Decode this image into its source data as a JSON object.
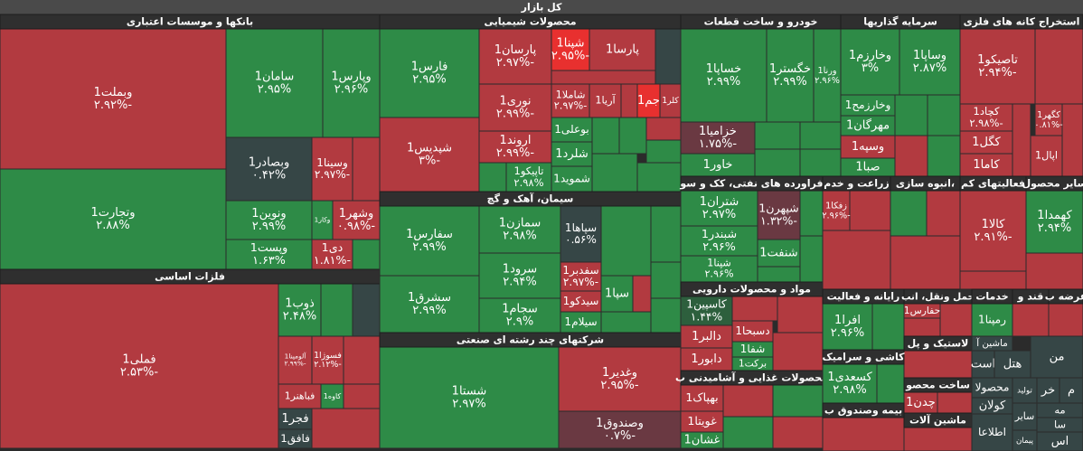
{
  "title": "کل بازار",
  "sectors": [
    {
      "name": "بانکها و موسسات اعتباری",
      "tiles": [
        {
          "name": "وبملت1",
          "change": "-۲.۹۲%",
          "color": "#b23a40"
        },
        {
          "name": "وتجارت1",
          "change": "۲.۸۸%",
          "color": "#2e8b47"
        },
        {
          "name": "سامان1",
          "change": "۲.۹۵%",
          "color": "#2e8b47"
        },
        {
          "name": "وپارس1",
          "change": "۲.۹۶%",
          "color": "#2e8b47"
        },
        {
          "name": "وبصادر1",
          "change": "۰.۴۲%",
          "color": "#364646"
        },
        {
          "name": "وسینا1",
          "change": "-۲.۹۷%",
          "color": "#b23a40"
        },
        {
          "name": "ونوین1",
          "change": "۲.۹۹%",
          "color": "#2e8b47"
        },
        {
          "name": "وکار1",
          "color": "#2e8b47"
        },
        {
          "name": "وشهر1",
          "change": "-۰.۹۸%",
          "color": "#b23a40"
        },
        {
          "name": "وپست1",
          "change": "۱.۶۳%",
          "color": "#2e8b47"
        },
        {
          "name": "دی1",
          "change": "-۱.۸۱%",
          "color": "#b23a40"
        }
      ]
    },
    {
      "name": "فلزات اساسی",
      "tiles": [
        {
          "name": "فملی1",
          "change": "-۲.۵۳%",
          "color": "#b23a40"
        },
        {
          "name": "ذوب1",
          "change": "۲.۴۸%",
          "color": "#2e8b47"
        },
        {
          "name": "آلومینا1",
          "change": "-۲.۹۹%",
          "color": "#b23a40"
        },
        {
          "name": "فسوژا1",
          "change": "-۲.۱۲%",
          "color": "#b23a40"
        },
        {
          "name": "فباهنر1",
          "color": "#b23a40"
        },
        {
          "name": "کاوه1",
          "color": "#2e8b47"
        },
        {
          "name": "فجر1",
          "color": "#364646"
        },
        {
          "name": "فافق1",
          "color": "#364646"
        }
      ]
    },
    {
      "name": "محصولات شیمیایی",
      "tiles": [
        {
          "name": "فارس1",
          "change": "۲.۹۵%",
          "color": "#2e8b47"
        },
        {
          "name": "شپدیس1",
          "change": "-۳%",
          "color": "#b23a40"
        },
        {
          "name": "پارسان1",
          "change": "-۲.۹۷%",
          "color": "#b23a40"
        },
        {
          "name": "نوری1",
          "change": "-۲.۹۹%",
          "color": "#b23a40"
        },
        {
          "name": "اروند1",
          "change": "-۲.۹۹%",
          "color": "#b23a40"
        },
        {
          "name": "تاپیکو1",
          "change": "۲.۹۸%",
          "color": "#2e8b47"
        },
        {
          "name": "شپنا1",
          "change": "-۲.۹۵%",
          "color": "#e8302f"
        },
        {
          "name": "پارسا1",
          "color": "#b23a40"
        },
        {
          "name": "شاملا1",
          "change": "-۲.۹۷%",
          "color": "#b23a40"
        },
        {
          "name": "آریا1",
          "color": "#b23a40"
        },
        {
          "name": "جم1",
          "color": "#e8302f"
        },
        {
          "name": "کلر1",
          "color": "#b23a40"
        },
        {
          "name": "بوعلی1",
          "color": "#2e8b47"
        },
        {
          "name": "شلرد1",
          "color": "#2e8b47"
        },
        {
          "name": "شموید1",
          "color": "#2e8b47"
        }
      ]
    },
    {
      "name": "سیمان، آهک و گچ",
      "tiles": [
        {
          "name": "سفارس1",
          "change": "۲.۹۹%",
          "color": "#2e8b47"
        },
        {
          "name": "سشرق1",
          "change": "۲.۹۹%",
          "color": "#2e8b47"
        },
        {
          "name": "سمازن1",
          "change": "۲.۹۸%",
          "color": "#2e8b47"
        },
        {
          "name": "سرود1",
          "change": "۲.۹۴%",
          "color": "#2e8b47"
        },
        {
          "name": "سجام1",
          "change": "۲.۹%",
          "color": "#2e8b47"
        },
        {
          "name": "سپاها1",
          "change": "۰.۵۶%",
          "color": "#364646"
        },
        {
          "name": "سفدبر1",
          "change": "-۲.۹۷%",
          "color": "#b23a40"
        },
        {
          "name": "سیدکو1",
          "color": "#b23a40"
        },
        {
          "name": "سیلام1",
          "color": "#2e8b47"
        },
        {
          "name": "سپا1",
          "color": "#2e8b47"
        }
      ]
    },
    {
      "name": "شرکتهای چند رشته ای صنعتی",
      "tiles": [
        {
          "name": "شستا1",
          "change": "۲.۹۷%",
          "color": "#2e8b47"
        },
        {
          "name": "وغدیر1",
          "change": "-۲.۹۵%",
          "color": "#b23a40"
        },
        {
          "name": "وصندوق1",
          "change": "-۰.۷%",
          "color": "#6a3942"
        }
      ]
    },
    {
      "name": "خودرو و ساخت قطعات",
      "tiles": [
        {
          "name": "خساپا1",
          "change": "۲.۹۹%",
          "color": "#2e8b47"
        },
        {
          "name": "خگستر1",
          "change": "۲.۹۹%",
          "color": "#2e8b47"
        },
        {
          "name": "ورنا1",
          "change": "۲.۹۶%",
          "color": "#2e8b47"
        },
        {
          "name": "خزامیا1",
          "change": "-۱.۷۵%",
          "color": "#6a3942"
        },
        {
          "name": "خاور1",
          "color": "#2e8b47"
        }
      ]
    },
    {
      "name": "فراورده های نفتی، کک و سو",
      "tiles": [
        {
          "name": "شتران1",
          "change": "۲.۹۷%",
          "color": "#2e8b47"
        },
        {
          "name": "شبندر1",
          "change": "۲.۹۶%",
          "color": "#2e8b47"
        },
        {
          "name": "شپنا1",
          "change": "۲.۹۶%",
          "color": "#2e8b47"
        },
        {
          "name": "شپهرن1",
          "change": "-۱.۳۲%",
          "color": "#6a3942"
        },
        {
          "name": "شنفت1",
          "color": "#2e8b47"
        }
      ]
    },
    {
      "name": "مواد و محصولات دارویی",
      "tiles": [
        {
          "name": "کاسپین1",
          "change": "۱.۴۴%",
          "color": "#2d5f3d"
        },
        {
          "name": "دالبر1",
          "color": "#b23a40"
        },
        {
          "name": "دابور1",
          "color": "#b23a40"
        },
        {
          "name": "دسبحا1",
          "color": "#b23a40"
        },
        {
          "name": "شفا1",
          "color": "#2e8b47"
        },
        {
          "name": "برکت1",
          "color": "#2e8b47"
        }
      ]
    },
    {
      "name": "محصولات غذایی و آشامیدنی ب",
      "tiles": [
        {
          "name": "بهپاک1",
          "color": "#b23a40"
        },
        {
          "name": "غویتا1",
          "color": "#b23a40"
        },
        {
          "name": "غشان1",
          "color": "#2e8b47"
        }
      ]
    },
    {
      "name": "سرمایه گذاریها",
      "tiles": [
        {
          "name": "وخارزم1",
          "change": "۳%",
          "color": "#2e8b47"
        },
        {
          "name": "وساپا1",
          "change": "۲.۸۷%",
          "color": "#2e8b47"
        },
        {
          "name": "وخارزمح1",
          "color": "#2e8b47"
        },
        {
          "name": "مهرگان1",
          "color": "#2e8b47"
        },
        {
          "name": "وسپه1",
          "color": "#b23a40"
        },
        {
          "name": "صبا1",
          "color": "#2e8b47"
        }
      ]
    },
    {
      "name": "زراعت و خدم",
      "tiles": [
        {
          "name": "زفکا1",
          "change": "-۲.۹۶%",
          "color": "#b23a40"
        }
      ]
    },
    {
      "name": "،انبوه سازی",
      "tiles": []
    },
    {
      "name": "رایانه و فعالیت",
      "tiles": [
        {
          "name": "افرا1",
          "change": "۲.۹۶%",
          "color": "#2e8b47"
        }
      ]
    },
    {
      "name": "حمل ونقل، انب",
      "tiles": [
        {
          "name": "حفارس1",
          "color": "#b23a40"
        }
      ]
    },
    {
      "name": "لاستیک و پل",
      "tiles": []
    },
    {
      "name": "کاشی و سرامیک",
      "tiles": [
        {
          "name": "کسعدی1",
          "change": "۲.۹۸%",
          "color": "#2e8b47"
        }
      ]
    },
    {
      "name": "ساخت محصو",
      "tiles": [
        {
          "name": "چدن1",
          "color": "#b23a40"
        }
      ]
    },
    {
      "name": "بیمه وصندوق ب",
      "tiles": []
    },
    {
      "name": "ماشین آلات",
      "tiles": []
    },
    {
      "name": "استخراج کانه های فلزی",
      "tiles": [
        {
          "name": "تاصیکو1",
          "change": "-۲.۹۴%",
          "color": "#b23a40"
        },
        {
          "name": "کچاد1",
          "change": "-۲.۹۸%",
          "color": "#b23a40"
        },
        {
          "name": "کگل1",
          "color": "#b23a40"
        },
        {
          "name": "کاما1",
          "color": "#b23a40"
        },
        {
          "name": "کگهر1",
          "change": "-۰.۸۱%",
          "color": "#b23a40"
        },
        {
          "name": "اپال1",
          "color": "#b23a40"
        }
      ]
    },
    {
      "name": "فعالیتهای کم",
      "tiles": [
        {
          "name": "کالا1",
          "change": "-۲.۹۱%",
          "color": "#b23a40"
        }
      ]
    },
    {
      "name": "سایر محصول",
      "tiles": [
        {
          "name": "کهمدا1",
          "change": "۲.۹۴%",
          "color": "#2e8b47"
        }
      ]
    },
    {
      "name": "خدمات",
      "tiles": [
        {
          "name": "رمپنا1",
          "color": "#2e8b47"
        }
      ]
    },
    {
      "name": "قند و",
      "tiles": []
    },
    {
      "name": "عرضه ب",
      "tiles": []
    },
    {
      "tiles": [
        {
          "name": "ماشین آ",
          "color": "#364646"
        },
        {
          "name": "است",
          "color": "#364646"
        },
        {
          "name": "هتل",
          "color": "#364646"
        },
        {
          "name": "من",
          "color": "#364646"
        },
        {
          "name": "محصولا",
          "color": "#364646"
        },
        {
          "name": "تولید",
          "color": "#364646"
        },
        {
          "name": "خر",
          "color": "#364646"
        },
        {
          "name": "م",
          "color": "#364646"
        },
        {
          "name": "کولان",
          "color": "#364646"
        },
        {
          "name": "سایر",
          "color": "#364646"
        },
        {
          "name": "اطلاعا",
          "color": "#364646"
        },
        {
          "name": "پیمان",
          "color": "#364646"
        },
        {
          "name": "مه",
          "color": "#364646"
        },
        {
          "name": "سا",
          "color": "#364646"
        },
        {
          "name": "اس",
          "color": "#364646"
        }
      ]
    }
  ]
}
